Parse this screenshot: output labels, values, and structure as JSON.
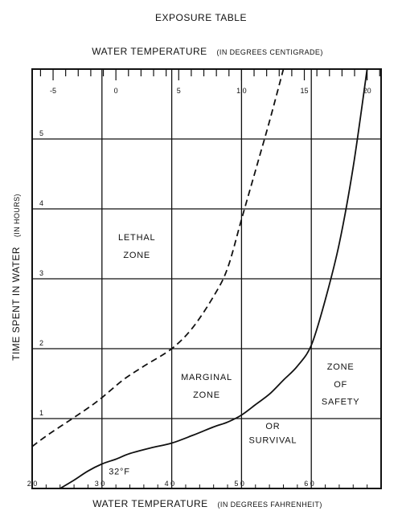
{
  "chart_data": {
    "type": "line",
    "title": "EXPOSURE TABLE",
    "x_top_label": {
      "main": "WATER TEMPERATURE",
      "unit": "(IN DEGREES CENTIGRADE)"
    },
    "x_bottom_label": {
      "main": "WATER TEMPERATURE",
      "unit": "(IN DEGREES FAHRENHEIT)"
    },
    "y_label": {
      "main": "TIME SPENT IN WATER",
      "unit": "(IN HOURS)"
    },
    "x_range_f": [
      20,
      70
    ],
    "y_range_hours": [
      0,
      6
    ],
    "grid": true,
    "x_ticks_f": [
      {
        "value": 20,
        "label": "2 0"
      },
      {
        "value": 30,
        "label": "3 0"
      },
      {
        "value": 40,
        "label": "4 0"
      },
      {
        "value": 50,
        "label": "5 0"
      },
      {
        "value": 60,
        "label": "6 0"
      }
    ],
    "x_ticks_c": [
      {
        "value": -5,
        "label": "-5"
      },
      {
        "value": 0,
        "label": "0"
      },
      {
        "value": 5,
        "label": "5"
      },
      {
        "value": 10,
        "label": "1 0"
      },
      {
        "value": 15,
        "label": "15"
      },
      {
        "value": 20,
        "label": "20"
      }
    ],
    "y_ticks": [
      {
        "value": 1,
        "label": "1"
      },
      {
        "value": 2,
        "label": "2"
      },
      {
        "value": 3,
        "label": "3"
      },
      {
        "value": 4,
        "label": "4"
      },
      {
        "value": 5,
        "label": "5"
      }
    ],
    "series": [
      {
        "style": "dashed",
        "x": [
          20,
          22,
          25,
          28,
          30,
          33,
          36,
          40,
          43,
          46,
          48,
          50,
          52,
          54,
          56
        ],
        "y": [
          0.6,
          0.75,
          0.95,
          1.15,
          1.3,
          1.55,
          1.75,
          2.0,
          2.3,
          2.75,
          3.15,
          3.85,
          4.55,
          5.25,
          6.0
        ]
      },
      {
        "style": "solid",
        "x": [
          24,
          26,
          28,
          30,
          32,
          34,
          37,
          40,
          43,
          46,
          48,
          50,
          52,
          54,
          56,
          58,
          60,
          62,
          64,
          66,
          68
        ],
        "y": [
          0.0,
          0.12,
          0.25,
          0.35,
          0.42,
          0.5,
          0.58,
          0.65,
          0.76,
          0.88,
          0.95,
          1.05,
          1.2,
          1.35,
          1.55,
          1.75,
          2.05,
          2.7,
          3.5,
          4.6,
          6.0
        ]
      }
    ],
    "annotations": [
      {
        "text": "32°F",
        "x": 32.5,
        "y": 0.2
      },
      {
        "text": "LETHAL",
        "x": 35,
        "y": 3.55
      },
      {
        "text": "ZONE",
        "x": 35,
        "y": 3.3
      },
      {
        "text": "MARGINAL",
        "x": 45,
        "y": 1.55
      },
      {
        "text": "ZONE",
        "x": 45,
        "y": 1.3
      },
      {
        "text": "ZONE",
        "x": 64.2,
        "y": 1.7
      },
      {
        "text": "OF",
        "x": 64.2,
        "y": 1.45
      },
      {
        "text": "SAFETY",
        "x": 64.2,
        "y": 1.2
      },
      {
        "text": "OR",
        "x": 54.5,
        "y": 0.85
      },
      {
        "text": "SURVIVAL",
        "x": 54.5,
        "y": 0.65
      }
    ]
  }
}
